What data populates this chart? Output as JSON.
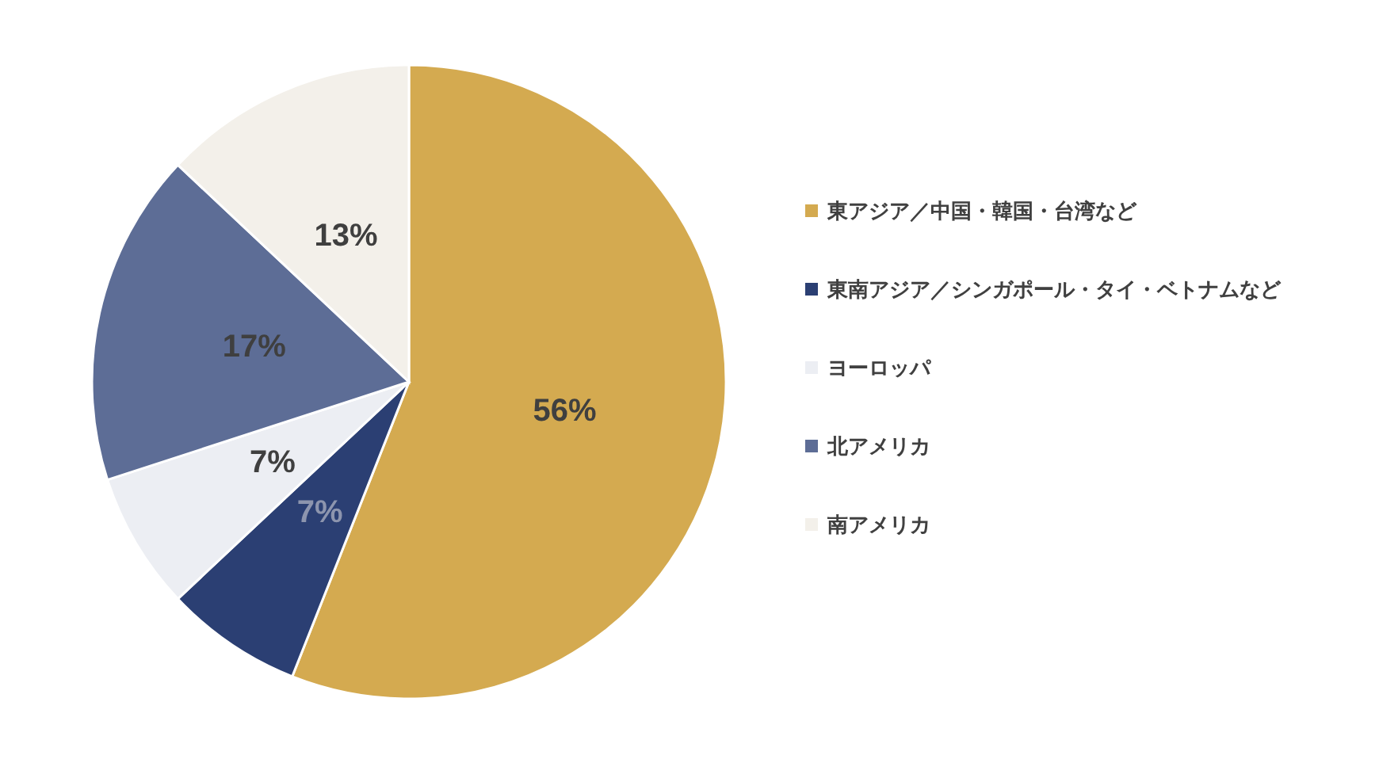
{
  "chart_data": {
    "type": "pie",
    "categories": [
      "東アジア／中国・韓国・台湾など",
      "東南アジア／シンガポール・タイ・ベトナムなど",
      "ヨーロッパ",
      "北アメリカ",
      "南アメリカ"
    ],
    "values": [
      56,
      7,
      7,
      17,
      13
    ],
    "colors": [
      "#d4aa50",
      "#2b3f73",
      "#eceef3",
      "#5d6d96",
      "#f3f0ea"
    ],
    "value_labels": [
      "56%",
      "7%",
      "7%",
      "17%",
      "13%"
    ],
    "legend": "right"
  }
}
